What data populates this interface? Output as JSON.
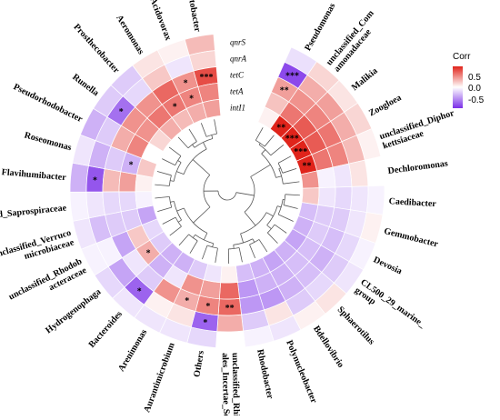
{
  "chart_data": {
    "type": "heatmap",
    "layout": "circular",
    "legend": {
      "title": "Corr",
      "ticks": [
        0.5,
        0.0,
        -0.5
      ],
      "tick_labels": [
        "0.5",
        "0.0",
        "-0.5"
      ],
      "range": [
        -0.8,
        0.8
      ],
      "placement": "top-right",
      "colors": {
        "low": "#7b2fe8",
        "mid": "#ffffff",
        "high": "#e0241b"
      }
    },
    "genes": [
      "qnrS",
      "qnrA",
      "tetC",
      "tetA",
      "intI1"
    ],
    "genera": [
      "Pseudomonas",
      "unclassified_Comamonadaceae",
      "Malikia",
      "Zoogloea",
      "unclassified_Diphorkettsiaceae",
      "Dechloromonas",
      "Caedibacter",
      "Gemmobacter",
      "Devosia",
      "CL500_29_marine_group",
      "Sphaerotilus",
      "Bdellovibrio",
      "Polynucleobacter",
      "Rhodobacter",
      "unclassified_Rhizobiales_Incertae_Sedis",
      "Others",
      "Aurantimicrobium",
      "Arenimonas",
      "Bacteroides",
      "Hydrogenophaga",
      "unclassified_Rhodobacteraceae",
      "unclassified_Verrucomicrobiaceae",
      "unclassified_Saprospiraceae",
      "Flavihumibacter",
      "Roseomonas",
      "Pseudorhodobacter",
      "Runella",
      "Prosthecobacter",
      "Aeromonas",
      "Acidovorax",
      "Acinetobacter"
    ],
    "genus_labels": [
      [
        "Pseudomonas"
      ],
      [
        "unclassified_Com",
        "amonadaceae"
      ],
      [
        "Malikia"
      ],
      [
        "Zoogloea"
      ],
      [
        "unclassified_Diphor",
        "kettsiaceae"
      ],
      [
        "Dechloromonas"
      ],
      [
        "Caedibacter"
      ],
      [
        "Gemmobacter"
      ],
      [
        "Devosia"
      ],
      [
        "CL500_29_marine_",
        "group"
      ],
      [
        "Sphaerotilus"
      ],
      [
        "Bdellovibrio"
      ],
      [
        "Polynucleobacter"
      ],
      [
        "Rhodobacter"
      ],
      [
        "unclassified_Rhizobi",
        "ales_Incertae_Sedis"
      ],
      [
        "Others"
      ],
      [
        "Aurantimicrobium"
      ],
      [
        "Arenimonas"
      ],
      [
        "Bacteroides"
      ],
      [
        "Hydrogenophaga"
      ],
      [
        "unclassified_Rhodob",
        "acteraceae"
      ],
      [
        "unclassified_Verruco",
        "microbiaceae"
      ],
      [
        "unclassified_Saprospiraceae"
      ],
      [
        "Flavihumibacter"
      ],
      [
        "Roseomonas"
      ],
      [
        "Pseudorhodobacter"
      ],
      [
        "Runella"
      ],
      [
        "Prosthecobacter"
      ],
      [
        "Aeromonas"
      ],
      [
        "Acidovorax"
      ],
      [
        "Acinetobacter"
      ]
    ],
    "values": [
      [
        -0.12,
        -0.7,
        0.35,
        0.22,
        0.05
      ],
      [
        0.15,
        0.3,
        0.4,
        0.5,
        0.8
      ],
      [
        0.1,
        0.35,
        0.45,
        0.6,
        0.85
      ],
      [
        0.15,
        0.3,
        0.5,
        0.6,
        0.85
      ],
      [
        0.05,
        0.25,
        0.45,
        0.5,
        0.82
      ],
      [
        0.0,
        0.1,
        -0.1,
        -0.05,
        0.4
      ],
      [
        -0.05,
        -0.1,
        -0.15,
        -0.1,
        0.2
      ],
      [
        0.05,
        -0.1,
        -0.2,
        -0.2,
        -0.25
      ],
      [
        -0.05,
        -0.15,
        -0.25,
        -0.2,
        -0.3
      ],
      [
        -0.1,
        -0.2,
        -0.3,
        -0.25,
        -0.35
      ],
      [
        0.1,
        -0.15,
        -0.25,
        -0.25,
        -0.3
      ],
      [
        0.05,
        -0.2,
        -0.3,
        -0.3,
        -0.35
      ],
      [
        -0.1,
        0.1,
        -0.4,
        -0.3,
        -0.3
      ],
      [
        -0.05,
        -0.2,
        -0.4,
        -0.4,
        -0.25
      ],
      [
        0.0,
        0.3,
        0.55,
        0.55,
        0.05
      ],
      [
        -0.15,
        -0.6,
        0.45,
        0.35,
        -0.1
      ],
      [
        -0.1,
        0.1,
        0.3,
        0.4,
        -0.2
      ],
      [
        -0.1,
        0.05,
        0.4,
        -0.1,
        -0.3
      ],
      [
        -0.1,
        -0.6,
        -0.2,
        -0.3,
        -0.3
      ],
      [
        -0.15,
        -0.35,
        -0.1,
        0.3,
        -0.2
      ],
      [
        -0.05,
        -0.05,
        -0.35,
        0.2,
        -0.15
      ],
      [
        -0.1,
        -0.25,
        -0.2,
        -0.2,
        -0.35
      ],
      [
        -0.05,
        -0.1,
        -0.15,
        -0.15,
        -0.05
      ],
      [
        -0.3,
        -0.65,
        0.25,
        0.35,
        0.05
      ],
      [
        -0.1,
        -0.3,
        -0.2,
        -0.3,
        0.2
      ],
      [
        -0.3,
        -0.2,
        0.3,
        0.45,
        0.0
      ],
      [
        -0.2,
        -0.55,
        0.4,
        0.4,
        0.15
      ],
      [
        -0.2,
        -0.15,
        0.4,
        0.5,
        0.3
      ],
      [
        0.1,
        0.2,
        0.55,
        0.5,
        0.25
      ],
      [
        0.05,
        -0.1,
        0.4,
        0.45,
        0.3
      ],
      [
        0.25,
        0.15,
        0.65,
        0.45,
        0.35
      ]
    ],
    "significance": [
      [
        "",
        "***",
        "**",
        "",
        ""
      ],
      [
        "",
        "",
        "",
        "",
        "**"
      ],
      [
        "",
        "",
        "",
        "",
        "***"
      ],
      [
        "",
        "",
        "",
        "",
        "***"
      ],
      [
        "",
        "",
        "",
        "",
        "**"
      ],
      [
        "",
        "",
        "",
        "",
        ""
      ],
      [
        "",
        "",
        "",
        "",
        ""
      ],
      [
        "",
        "",
        "",
        "",
        ""
      ],
      [
        "",
        "",
        "",
        "",
        ""
      ],
      [
        "",
        "",
        "",
        "",
        ""
      ],
      [
        "",
        "",
        "",
        "",
        ""
      ],
      [
        "",
        "",
        "",
        "",
        ""
      ],
      [
        "",
        "",
        "",
        "",
        ""
      ],
      [
        "",
        "",
        "",
        "",
        ""
      ],
      [
        "",
        "",
        "**",
        "",
        ""
      ],
      [
        "",
        "*",
        "*",
        "",
        ""
      ],
      [
        "",
        "",
        "*",
        "",
        ""
      ],
      [
        "",
        "",
        "",
        "",
        ""
      ],
      [
        "",
        "*",
        "",
        "",
        ""
      ],
      [
        "",
        "",
        "",
        "*",
        ""
      ],
      [
        "",
        "",
        "",
        "",
        ""
      ],
      [
        "",
        "",
        "",
        "",
        ""
      ],
      [
        "",
        "",
        "",
        "",
        ""
      ],
      [
        "",
        "*",
        "",
        "",
        ""
      ],
      [
        "",
        "",
        "",
        "*",
        ""
      ],
      [
        "",
        "",
        "",
        "",
        ""
      ],
      [
        "",
        "*",
        "",
        "",
        ""
      ],
      [
        "",
        "",
        "",
        "",
        ""
      ],
      [
        "",
        "",
        "",
        "*",
        ""
      ],
      [
        "",
        "",
        "*",
        "*",
        ""
      ],
      [
        "",
        "",
        "***",
        "",
        ""
      ]
    ]
  }
}
